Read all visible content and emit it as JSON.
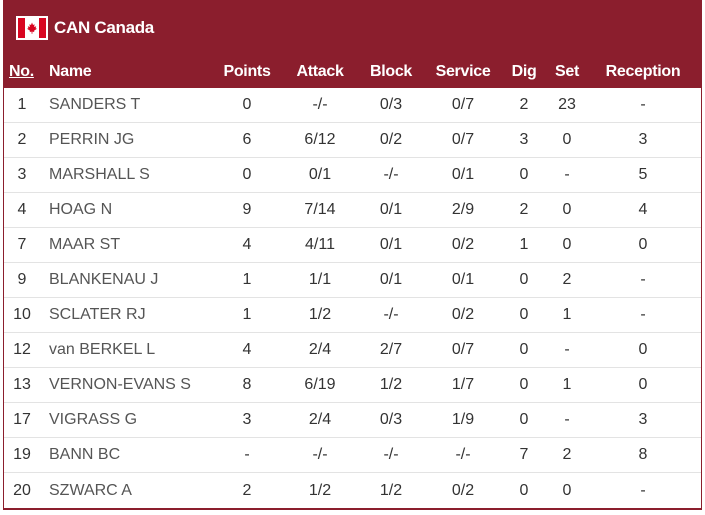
{
  "team": {
    "code_name": "CAN Canada",
    "flag_icon": "canada-flag-icon",
    "colors": {
      "header": "#8b1e2d",
      "flag_red": "#d80621"
    }
  },
  "columns": {
    "no": "No.",
    "name": "Name",
    "points": "Points",
    "attack": "Attack",
    "block": "Block",
    "service": "Service",
    "dig": "Dig",
    "set": "Set",
    "reception": "Reception"
  },
  "players": [
    {
      "no": "1",
      "name": "SANDERS T",
      "points": "0",
      "attack": "-/-",
      "block": "0/3",
      "service": "0/7",
      "dig": "2",
      "set": "23",
      "reception": "-"
    },
    {
      "no": "2",
      "name": "PERRIN JG",
      "points": "6",
      "attack": "6/12",
      "block": "0/2",
      "service": "0/7",
      "dig": "3",
      "set": "0",
      "reception": "3"
    },
    {
      "no": "3",
      "name": "MARSHALL S",
      "points": "0",
      "attack": "0/1",
      "block": "-/-",
      "service": "0/1",
      "dig": "0",
      "set": "-",
      "reception": "5"
    },
    {
      "no": "4",
      "name": "HOAG N",
      "points": "9",
      "attack": "7/14",
      "block": "0/1",
      "service": "2/9",
      "dig": "2",
      "set": "0",
      "reception": "4"
    },
    {
      "no": "7",
      "name": "MAAR ST",
      "points": "4",
      "attack": "4/11",
      "block": "0/1",
      "service": "0/2",
      "dig": "1",
      "set": "0",
      "reception": "0"
    },
    {
      "no": "9",
      "name": "BLANKENAU J",
      "points": "1",
      "attack": "1/1",
      "block": "0/1",
      "service": "0/1",
      "dig": "0",
      "set": "2",
      "reception": "-"
    },
    {
      "no": "10",
      "name": "SCLATER RJ",
      "points": "1",
      "attack": "1/2",
      "block": "-/-",
      "service": "0/2",
      "dig": "0",
      "set": "1",
      "reception": "-"
    },
    {
      "no": "12",
      "name": "van BERKEL L",
      "points": "4",
      "attack": "2/4",
      "block": "2/7",
      "service": "0/7",
      "dig": "0",
      "set": "-",
      "reception": "0"
    },
    {
      "no": "13",
      "name": "VERNON-EVANS S",
      "points": "8",
      "attack": "6/19",
      "block": "1/2",
      "service": "1/7",
      "dig": "0",
      "set": "1",
      "reception": "0"
    },
    {
      "no": "17",
      "name": "VIGRASS G",
      "points": "3",
      "attack": "2/4",
      "block": "0/3",
      "service": "1/9",
      "dig": "0",
      "set": "-",
      "reception": "3"
    },
    {
      "no": "19",
      "name": "BANN BC",
      "points": "-",
      "attack": "-/-",
      "block": "-/-",
      "service": "-/-",
      "dig": "7",
      "set": "2",
      "reception": "8"
    },
    {
      "no": "20",
      "name": "SZWARC A",
      "points": "2",
      "attack": "1/2",
      "block": "1/2",
      "service": "0/2",
      "dig": "0",
      "set": "0",
      "reception": "-"
    }
  ]
}
